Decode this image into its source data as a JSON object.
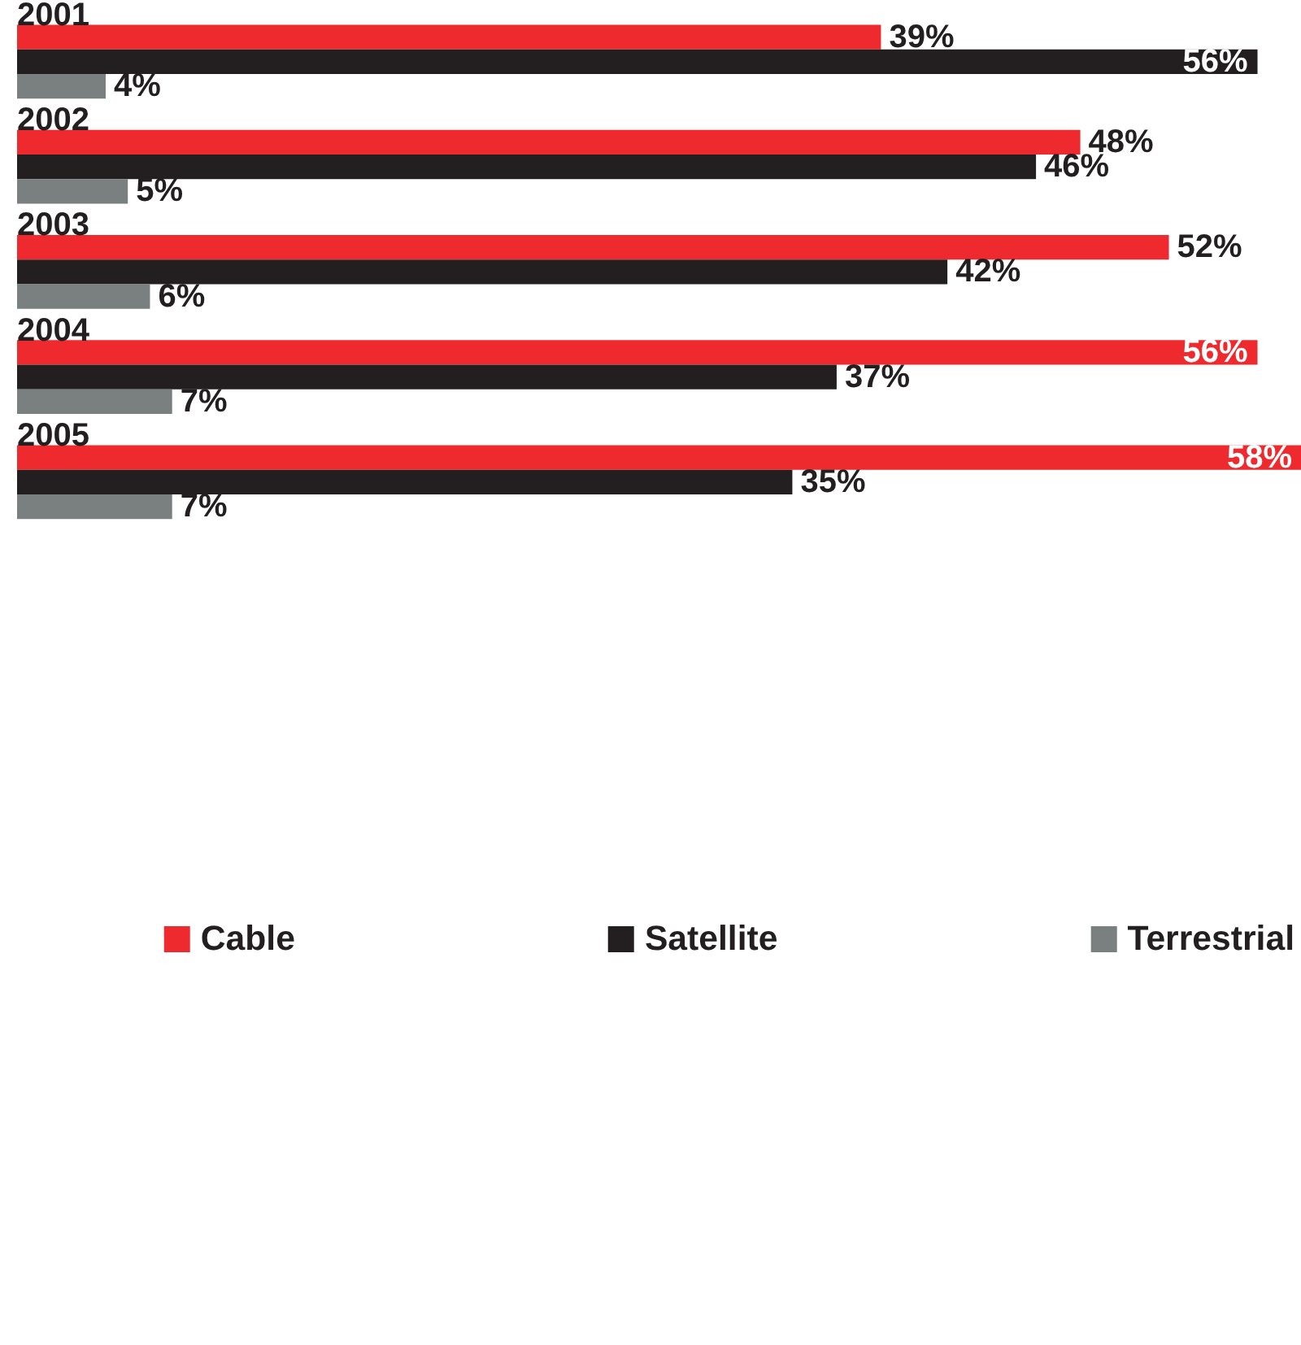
{
  "chart_data": {
    "type": "bar",
    "orientation": "horizontal",
    "categories": [
      "2001",
      "2002",
      "2003",
      "2004",
      "2005"
    ],
    "series": [
      {
        "name": "Cable",
        "color": "#ee2a2e",
        "values": [
          39,
          48,
          52,
          56,
          58
        ],
        "value_labels": [
          "39%",
          "48%",
          "52%",
          "56%",
          "58%"
        ]
      },
      {
        "name": "Satellite",
        "color": "#231f20",
        "values": [
          56,
          46,
          42,
          37,
          35
        ],
        "value_labels": [
          "56%",
          "46%",
          "42%",
          "37%",
          "35%"
        ]
      },
      {
        "name": "Terrestrial",
        "color": "#7a7f80",
        "values": [
          4,
          5,
          6,
          7,
          7
        ],
        "value_labels": [
          "4%",
          "5%",
          "6%",
          "7%",
          "7%"
        ]
      }
    ],
    "legend": "bottom",
    "grid": false,
    "tick_labels": false
  }
}
